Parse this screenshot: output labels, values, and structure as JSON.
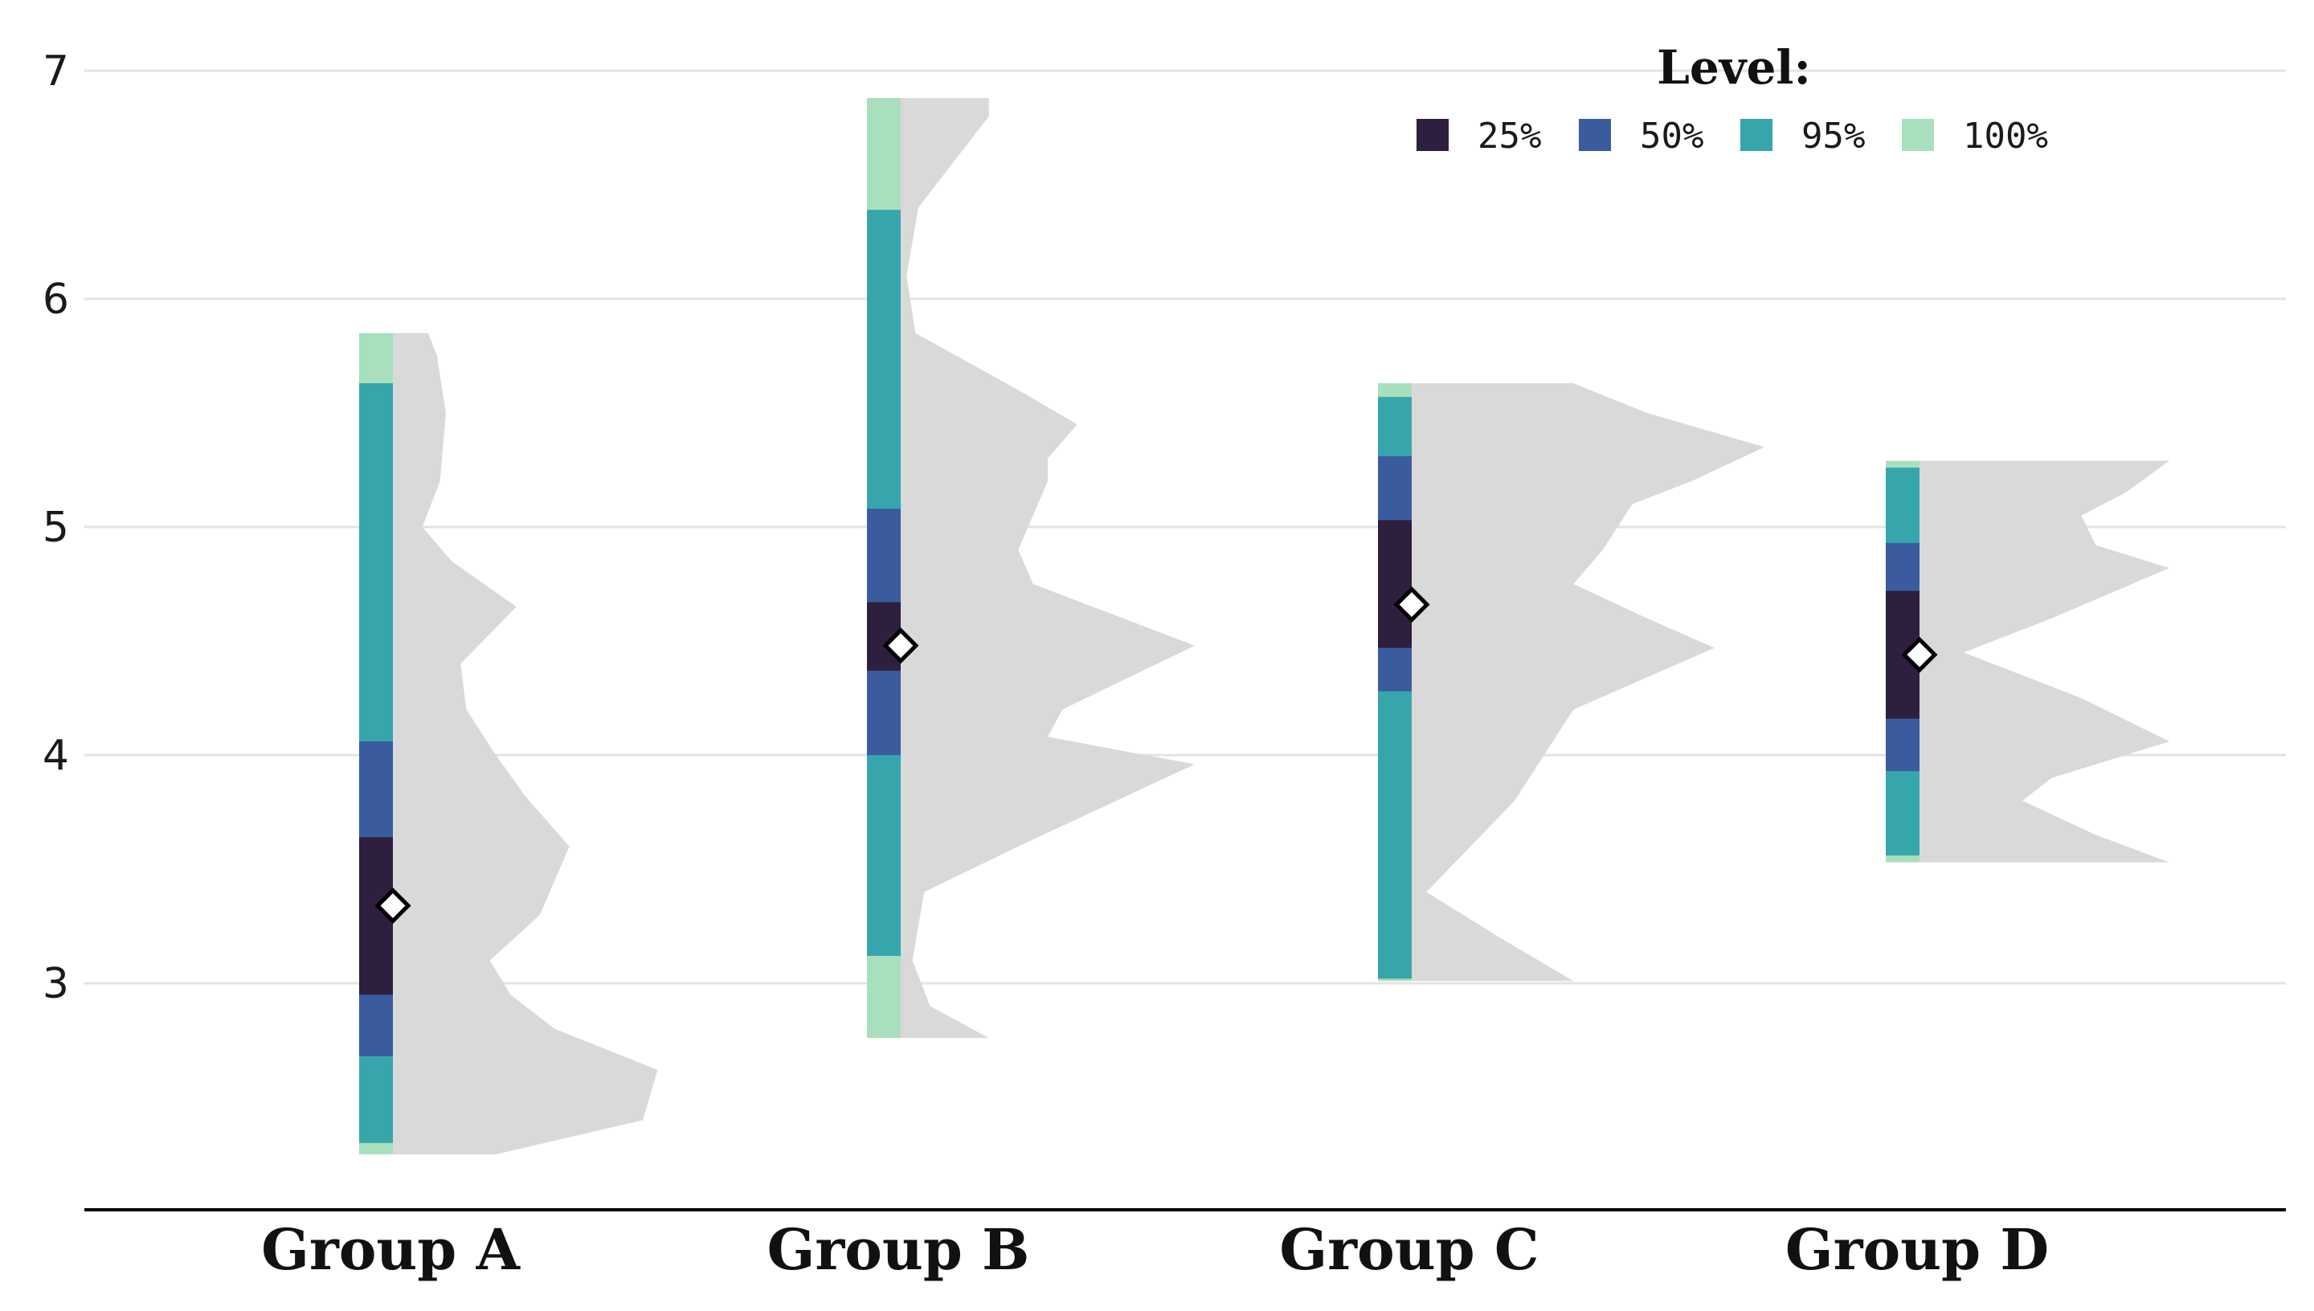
{
  "chart_data": {
    "type": "raincloud-interval",
    "title": "",
    "xlabel": "",
    "ylabel": "",
    "ylim": [
      2.1,
      7.0
    ],
    "yticks": [
      3,
      4,
      5,
      6,
      7
    ],
    "grid": true,
    "legend": {
      "title": "Level:",
      "placement": "top-right",
      "entries": [
        {
          "label": "25%",
          "color": "#2e1f3e"
        },
        {
          "label": "50%",
          "color": "#3a5b9e"
        },
        {
          "label": "95%",
          "color": "#37a5ac"
        },
        {
          "label": "100%",
          "color": "#a8e0bd"
        }
      ]
    },
    "density_color": "#d9d9d9",
    "mean_marker": "diamond",
    "groups": [
      {
        "name": "Group A",
        "mean": 3.34,
        "min": 2.25,
        "max": 5.85,
        "intervals": {
          "100%": [
            2.25,
            5.85
          ],
          "95%": [
            2.3,
            5.63
          ],
          "50%": [
            2.68,
            4.06
          ],
          "25%": [
            2.95,
            3.64
          ]
        },
        "density": [
          [
            2.25,
            0.35
          ],
          [
            2.4,
            0.85
          ],
          [
            2.62,
            0.9
          ],
          [
            2.8,
            0.55
          ],
          [
            2.95,
            0.4
          ],
          [
            3.1,
            0.33
          ],
          [
            3.3,
            0.5
          ],
          [
            3.6,
            0.6
          ],
          [
            3.82,
            0.45
          ],
          [
            4.0,
            0.35
          ],
          [
            4.2,
            0.25
          ],
          [
            4.4,
            0.23
          ],
          [
            4.65,
            0.42
          ],
          [
            4.85,
            0.2
          ],
          [
            5.0,
            0.1
          ],
          [
            5.2,
            0.16
          ],
          [
            5.5,
            0.18
          ],
          [
            5.75,
            0.15
          ],
          [
            5.85,
            0.12
          ]
        ]
      },
      {
        "name": "Group B",
        "mean": 4.48,
        "min": 2.76,
        "max": 6.88,
        "intervals": {
          "100%": [
            2.76,
            6.88
          ],
          "95%": [
            3.12,
            6.39
          ],
          "50%": [
            4.0,
            5.08
          ],
          "25%": [
            4.37,
            4.67
          ]
        },
        "density": [
          [
            2.76,
            0.3
          ],
          [
            2.9,
            0.1
          ],
          [
            3.1,
            0.04
          ],
          [
            3.4,
            0.08
          ],
          [
            3.6,
            0.4
          ],
          [
            3.96,
            1.0
          ],
          [
            4.08,
            0.5
          ],
          [
            4.2,
            0.55
          ],
          [
            4.48,
            1.0
          ],
          [
            4.75,
            0.45
          ],
          [
            4.9,
            0.4
          ],
          [
            5.05,
            0.45
          ],
          [
            5.2,
            0.5
          ],
          [
            5.3,
            0.5
          ],
          [
            5.45,
            0.6
          ],
          [
            5.6,
            0.4
          ],
          [
            5.85,
            0.05
          ],
          [
            6.1,
            0.02
          ],
          [
            6.4,
            0.06
          ],
          [
            6.8,
            0.3
          ],
          [
            6.88,
            0.3
          ]
        ]
      },
      {
        "name": "Group C",
        "mean": 4.66,
        "min": 3.01,
        "max": 5.63,
        "intervals": {
          "100%": [
            3.01,
            5.63
          ],
          "95%": [
            3.02,
            5.57
          ],
          "50%": [
            4.28,
            5.31
          ],
          "25%": [
            4.47,
            5.03
          ]
        },
        "density": [
          [
            3.01,
            0.55
          ],
          [
            3.2,
            0.3
          ],
          [
            3.4,
            0.05
          ],
          [
            3.6,
            0.2
          ],
          [
            3.8,
            0.35
          ],
          [
            4.0,
            0.45
          ],
          [
            4.2,
            0.55
          ],
          [
            4.47,
            1.03
          ],
          [
            4.6,
            0.8
          ],
          [
            4.75,
            0.55
          ],
          [
            4.9,
            0.65
          ],
          [
            5.1,
            0.75
          ],
          [
            5.2,
            0.95
          ],
          [
            5.35,
            1.2
          ],
          [
            5.5,
            0.8
          ],
          [
            5.63,
            0.55
          ]
        ]
      },
      {
        "name": "Group D",
        "mean": 4.44,
        "min": 3.53,
        "max": 5.29,
        "intervals": {
          "100%": [
            3.53,
            5.29
          ],
          "95%": [
            3.56,
            5.26
          ],
          "50%": [
            3.93,
            4.93
          ],
          "25%": [
            4.16,
            4.72
          ]
        },
        "density": [
          [
            3.53,
            0.85
          ],
          [
            3.65,
            0.6
          ],
          [
            3.8,
            0.35
          ],
          [
            3.9,
            0.45
          ],
          [
            4.06,
            0.85
          ],
          [
            4.25,
            0.55
          ],
          [
            4.45,
            0.15
          ],
          [
            4.6,
            0.45
          ],
          [
            4.82,
            0.85
          ],
          [
            4.92,
            0.6
          ],
          [
            5.05,
            0.55
          ],
          [
            5.15,
            0.7
          ],
          [
            5.29,
            0.85
          ]
        ]
      }
    ]
  }
}
